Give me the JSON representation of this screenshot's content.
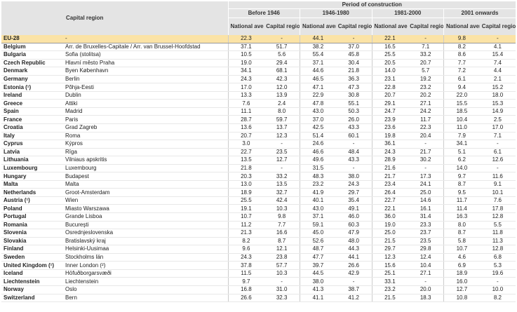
{
  "table": {
    "header": {
      "region_col": "Capital region",
      "period_title": "Period of construction",
      "periods": [
        {
          "name": "Before 1946",
          "columns": [
            "National average",
            "Capital region"
          ]
        },
        {
          "name": "1946-1980",
          "columns": [
            "National average",
            "Capital region"
          ]
        },
        {
          "name": "1981-2000",
          "columns": [
            "National average",
            "Capital region"
          ]
        },
        {
          "name": "2001 onwards",
          "columns": [
            "National average",
            "Capital region"
          ]
        }
      ]
    },
    "rows": [
      [
        "EU-28",
        "-",
        "22.3",
        "-",
        "44.1",
        "-",
        "22.1",
        "-",
        "9.8",
        "-"
      ],
      [
        "Belgium",
        "Arr. de Bruxelles-Capitale / Arr. van Brussel-Hoofdstad",
        "37.1",
        "51.7",
        "38.2",
        "37.0",
        "16.5",
        "7.1",
        "8.2",
        "4.1"
      ],
      [
        "Bulgaria",
        "Sofia (stolitsa)",
        "10.5",
        "5.6",
        "55.4",
        "45.8",
        "25.5",
        "33.2",
        "8.6",
        "15.4"
      ],
      [
        "Czech Republic",
        "Hlavní město Praha",
        "19.0",
        "29.4",
        "37.1",
        "30.4",
        "20.5",
        "20.7",
        "7.7",
        "7.4"
      ],
      [
        "Denmark",
        "Byen København",
        "34.1",
        "68.1",
        "44.6",
        "21.8",
        "14.0",
        "5.7",
        "7.2",
        "4.4"
      ],
      [
        "Germany",
        "Berlin",
        "24.3",
        "42.3",
        "46.5",
        "36.3",
        "23.1",
        "19.2",
        "6.1",
        "2.1"
      ],
      [
        "Estonia (¹)",
        "Põhja-Eesti",
        "17.0",
        "12.0",
        "47.1",
        "47.3",
        "22.8",
        "23.2",
        "9.4",
        "15.2"
      ],
      [
        "Ireland",
        "Dublin",
        "13.3",
        "13.9",
        "22.9",
        "30.8",
        "20.7",
        "20.2",
        "22.0",
        "18.0"
      ],
      [
        "Greece",
        "Attiki",
        "7.6",
        "2.4",
        "47.8",
        "55.1",
        "29.1",
        "27.1",
        "15.5",
        "15.3"
      ],
      [
        "Spain",
        "Madrid",
        "11.1",
        "8.0",
        "43.0",
        "50.3",
        "24.7",
        "24.2",
        "18.5",
        "14.9"
      ],
      [
        "France",
        "Paris",
        "28.7",
        "59.7",
        "37.0",
        "26.0",
        "23.9",
        "11.7",
        "10.4",
        "2.5"
      ],
      [
        "Croatia",
        "Grad Zagreb",
        "13.6",
        "13.7",
        "42.5",
        "43.3",
        "23.6",
        "22.3",
        "11.0",
        "17.0"
      ],
      [
        "Italy",
        "Roma",
        "20.7",
        "12.3",
        "51.4",
        "60.1",
        "19.8",
        "20.4",
        "7.9",
        "7.1"
      ],
      [
        "Cyprus",
        "Kýpros",
        "3.0",
        "-",
        "24.6",
        "-",
        "36.1",
        "-",
        "34.1",
        "-"
      ],
      [
        "Latvia",
        "Rīga",
        "22.7",
        "23.5",
        "46.6",
        "48.4",
        "24.3",
        "21.7",
        "5.1",
        "6.1"
      ],
      [
        "Lithuania",
        "Vilniaus apskritis",
        "13.5",
        "12.7",
        "49.6",
        "43.3",
        "28.9",
        "30.2",
        "6.2",
        "12.6"
      ],
      [
        "Luxembourg",
        "Luxembourg",
        "21.8",
        "-",
        "31.5",
        "-",
        "21.6",
        "-",
        "14.0",
        "-"
      ],
      [
        "Hungary",
        "Budapest",
        "20.3",
        "33.2",
        "48.3",
        "38.0",
        "21.7",
        "17.3",
        "9.7",
        "11.6"
      ],
      [
        "Malta",
        "Malta",
        "13.0",
        "13.5",
        "23.2",
        "24.3",
        "23.4",
        "24.1",
        "8.7",
        "9.1"
      ],
      [
        "Netherlands",
        "Groot-Amsterdam",
        "18.9",
        "32.7",
        "41.9",
        "29.7",
        "26.4",
        "25.0",
        "9.5",
        "10.1"
      ],
      [
        "Austria (¹)",
        "Wien",
        "25.5",
        "42.4",
        "40.1",
        "35.4",
        "22.7",
        "14.6",
        "11.7",
        "7.6"
      ],
      [
        "Poland",
        "Miasto Warszawa",
        "19.1",
        "10.3",
        "43.0",
        "49.1",
        "22.1",
        "16.1",
        "11.4",
        "17.8"
      ],
      [
        "Portugal",
        "Grande Lisboa",
        "10.7",
        "9.8",
        "37.1",
        "46.0",
        "36.0",
        "31.4",
        "16.3",
        "12.8"
      ],
      [
        "Romania",
        "Bucureşti",
        "11.2",
        "7.7",
        "59.1",
        "60.3",
        "19.0",
        "23.3",
        "8.0",
        "5.5"
      ],
      [
        "Slovenia",
        "Osrednjeslovenska",
        "21.3",
        "16.6",
        "45.0",
        "47.9",
        "25.0",
        "23.7",
        "8.7",
        "11.8"
      ],
      [
        "Slovakia",
        "Bratislavský kraj",
        "8.2",
        "8.7",
        "52.6",
        "48.0",
        "21.5",
        "23.5",
        "5.8",
        "11.3"
      ],
      [
        "Finland",
        "Helsinki-Uusimaa",
        "9.6",
        "12.1",
        "48.7",
        "44.3",
        "29.7",
        "29.8",
        "10.7",
        "12.8"
      ],
      [
        "Sweden",
        "Stockholms län",
        "24.3",
        "23.8",
        "47.7",
        "44.1",
        "12.3",
        "12.4",
        "4.6",
        "6.8"
      ],
      [
        "United Kingdom (¹)",
        "Inner London (²)",
        "37.8",
        "57.7",
        "39.7",
        "26.6",
        "15.6",
        "10.4",
        "6.9",
        "5.3"
      ],
      [
        "Iceland",
        "Höfuðborgarsvæði",
        "11.5",
        "10.3",
        "44.5",
        "42.9",
        "25.1",
        "27.1",
        "18.9",
        "19.6"
      ],
      [
        "Liechtenstein",
        "Liechtenstein",
        "9.7",
        "-",
        "38.0",
        "-",
        "33.1",
        "-",
        "16.0",
        "-"
      ],
      [
        "Norway",
        "Oslo",
        "16.8",
        "31.0",
        "41.3",
        "38.7",
        "23.2",
        "20.0",
        "12.7",
        "10.0"
      ],
      [
        "Switzerland",
        "Bern",
        "26.6",
        "32.3",
        "41.1",
        "41.2",
        "21.5",
        "18.3",
        "10.8",
        "8.2"
      ]
    ]
  }
}
